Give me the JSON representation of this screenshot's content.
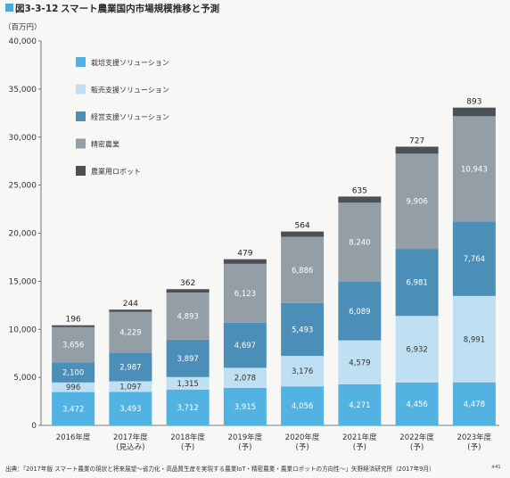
{
  "figure_label": "図3-3-12",
  "title": "スマート農業国内市場規模推移と予測",
  "unit_label": "（百万円）",
  "source": "出典：「2017年版 スマート農業の現状と将来展望～省力化・高品質生産を実現する農業IoT・精密農業・農業ロボットの方向性～」矢野経済研究所（2017年9月）",
  "source_mark": "※41",
  "colors": {
    "title_marker": "#4fa8d8",
    "background": "#f7f7f5",
    "cultivation": "#52b2e2",
    "sales": "#bfe0f2",
    "management": "#4b8fb8",
    "precision": "#939ea6",
    "robot": "#4a5156"
  },
  "chart_data": {
    "type": "bar",
    "stacked": true,
    "categories": [
      "2016年度",
      "2017年度\n(見込み)",
      "2018年度\n(予)",
      "2019年度\n(予)",
      "2020年度\n(予)",
      "2021年度\n(予)",
      "2022年度\n(予)",
      "2023年度\n(予)"
    ],
    "series": [
      {
        "name": "栽培支援ソリューション",
        "color_key": "cultivation",
        "label_color": "#ffffff",
        "values": [
          3472,
          3493,
          3712,
          3915,
          4056,
          4271,
          4456,
          4478
        ]
      },
      {
        "name": "販売支援ソリューション",
        "color_key": "sales",
        "label_color": "#333333",
        "values": [
          996,
          1097,
          1315,
          2078,
          3176,
          4579,
          6932,
          8991
        ]
      },
      {
        "name": "経営支援ソリューション",
        "color_key": "management",
        "label_color": "#ffffff",
        "values": [
          2100,
          2987,
          3897,
          4697,
          5493,
          6089,
          6981,
          7764
        ]
      },
      {
        "name": "精密農業",
        "color_key": "precision",
        "label_color": "#ffffff",
        "values": [
          3656,
          4229,
          4893,
          6123,
          6886,
          8240,
          9906,
          10943
        ]
      },
      {
        "name": "農業用ロボット",
        "color_key": "robot",
        "label_color": "#ffffff",
        "values": [
          196,
          244,
          362,
          479,
          564,
          635,
          727,
          893
        ],
        "label_outside": true
      }
    ],
    "yticks": [
      0,
      5000,
      10000,
      15000,
      20000,
      25000,
      30000,
      35000,
      40000
    ],
    "ytick_labels": [
      "0",
      "5,000",
      "10,000",
      "15,000",
      "20,000",
      "25,000",
      "30,000",
      "35,000",
      "40,000"
    ],
    "ylim": [
      0,
      40000
    ],
    "grid": false,
    "legend_position": "top-left",
    "label_format": "thousands-comma"
  }
}
